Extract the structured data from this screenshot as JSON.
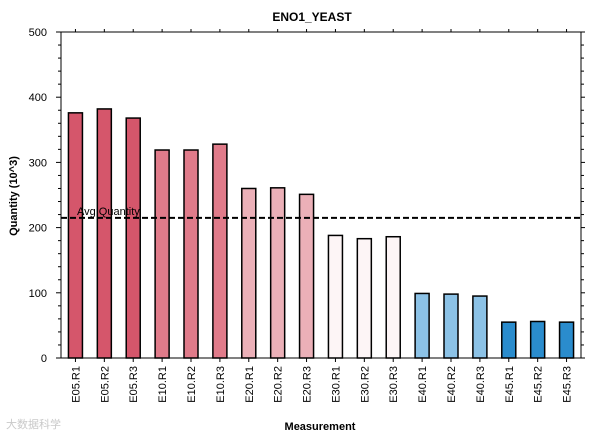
{
  "chart_data": {
    "type": "bar",
    "title": "ENO1_YEAST",
    "xlabel": "Measurement",
    "ylabel": "Quantity (10^3)",
    "ylim": [
      0,
      500
    ],
    "yticks": [
      "0",
      "100",
      "200",
      "300",
      "400",
      "500"
    ],
    "categories": [
      "E05.R1",
      "E05.R2",
      "E05.R3",
      "E10.R1",
      "E10.R2",
      "E10.R3",
      "E20.R1",
      "E20.R2",
      "E20.R3",
      "E30.R1",
      "E30.R2",
      "E30.R3",
      "E40.R1",
      "E40.R2",
      "E40.R3",
      "E45.R1",
      "E45.R2",
      "E45.R3"
    ],
    "values": [
      376,
      382,
      368,
      319,
      319,
      328,
      260,
      261,
      251,
      188,
      183,
      186,
      99,
      98,
      95,
      55,
      56,
      55
    ],
    "colors": [
      "#d5566b",
      "#d5566b",
      "#d5566b",
      "#e07b8a",
      "#e07b8a",
      "#e07b8a",
      "#ebb0b8",
      "#ebb0b8",
      "#ebb0b8",
      "#fdf5f6",
      "#fdf5f6",
      "#fdf5f6",
      "#8cc2e6",
      "#8cc2e6",
      "#8cc2e6",
      "#2a8ccd",
      "#2a8ccd",
      "#2a8ccd"
    ],
    "average": {
      "label": "Avg Quantity",
      "value": 215
    },
    "grid": false
  },
  "watermark": "大数据科学"
}
